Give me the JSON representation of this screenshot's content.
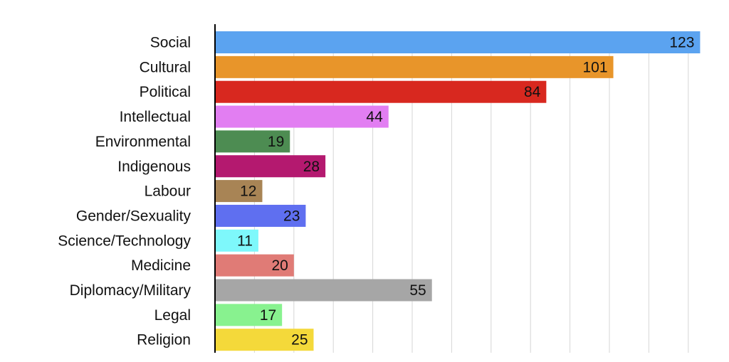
{
  "chart_data": {
    "type": "bar",
    "orientation": "horizontal",
    "categories": [
      "Social",
      "Cultural",
      "Political",
      "Intellectual",
      "Environmental",
      "Indigenous",
      "Labour",
      "Gender/Sexuality",
      "Science/Technology",
      "Medicine",
      "Diplomacy/Military",
      "Legal",
      "Religion"
    ],
    "values": [
      123,
      101,
      84,
      44,
      19,
      28,
      12,
      23,
      11,
      20,
      55,
      17,
      25
    ],
    "colors": [
      "#5ba3f0",
      "#e8952a",
      "#d8281f",
      "#e27ef2",
      "#4d8c52",
      "#b4196f",
      "#a88455",
      "#5f6ff0",
      "#7ef8fb",
      "#e07b76",
      "#a6a6a6",
      "#88f28f",
      "#f4d93a"
    ],
    "xlim": [
      0,
      130
    ],
    "grid_step": 10,
    "grid": true,
    "legend": "none",
    "data_labels": true,
    "title": "",
    "xlabel": "",
    "ylabel": ""
  }
}
